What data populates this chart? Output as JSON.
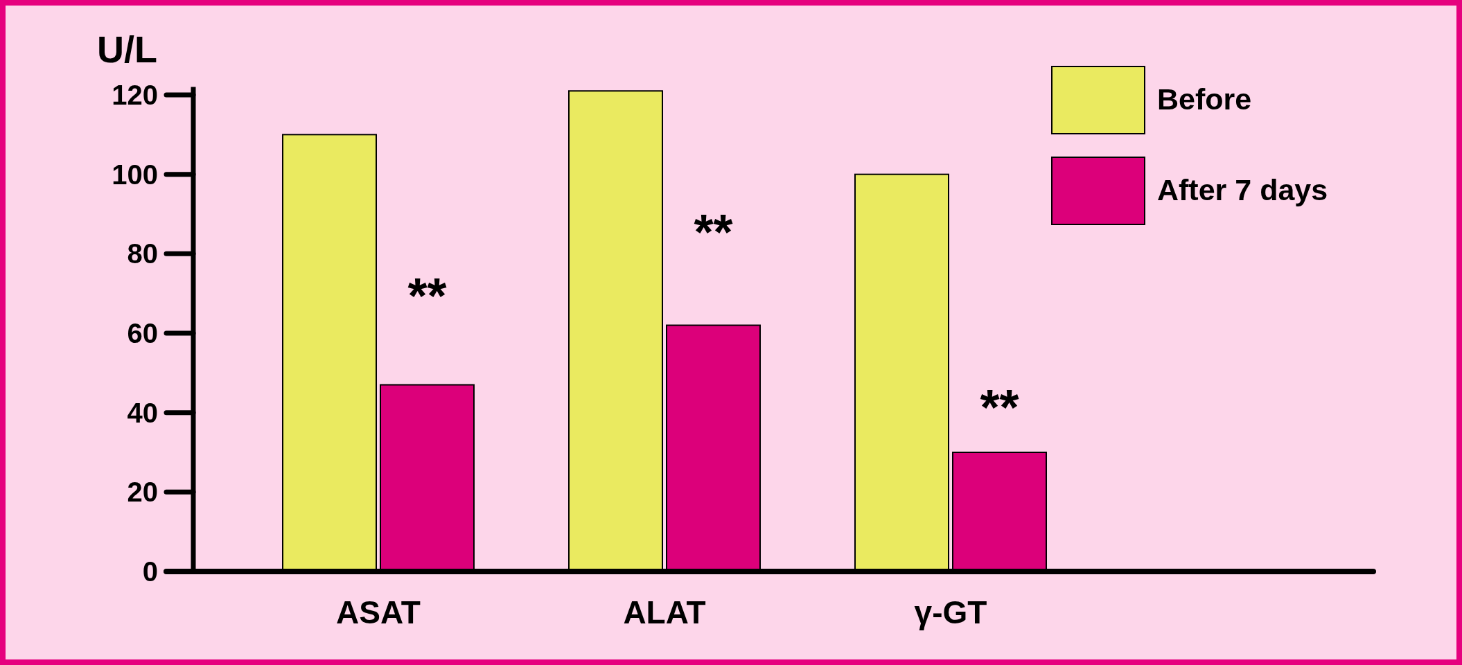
{
  "chart_data": {
    "type": "bar",
    "ylabel": "U/L",
    "categories": [
      "ASAT",
      "ALAT",
      "γ-GT"
    ],
    "series": [
      {
        "name": "Before",
        "color": "#eaea60",
        "values": [
          110,
          121,
          100
        ]
      },
      {
        "name": "After 7 days",
        "color": "#dc007a",
        "values": [
          47,
          62,
          30
        ]
      }
    ],
    "ylim": [
      0,
      122
    ],
    "yticks": [
      0,
      20,
      40,
      60,
      80,
      100,
      120
    ],
    "grid": false,
    "legend": "top right",
    "annotations": [
      {
        "text": "**",
        "x": "ASAT",
        "y": 72
      },
      {
        "text": "**",
        "x": "ALAT",
        "y": 88
      },
      {
        "text": "**",
        "x": "γ-GT",
        "y": 44
      }
    ]
  }
}
